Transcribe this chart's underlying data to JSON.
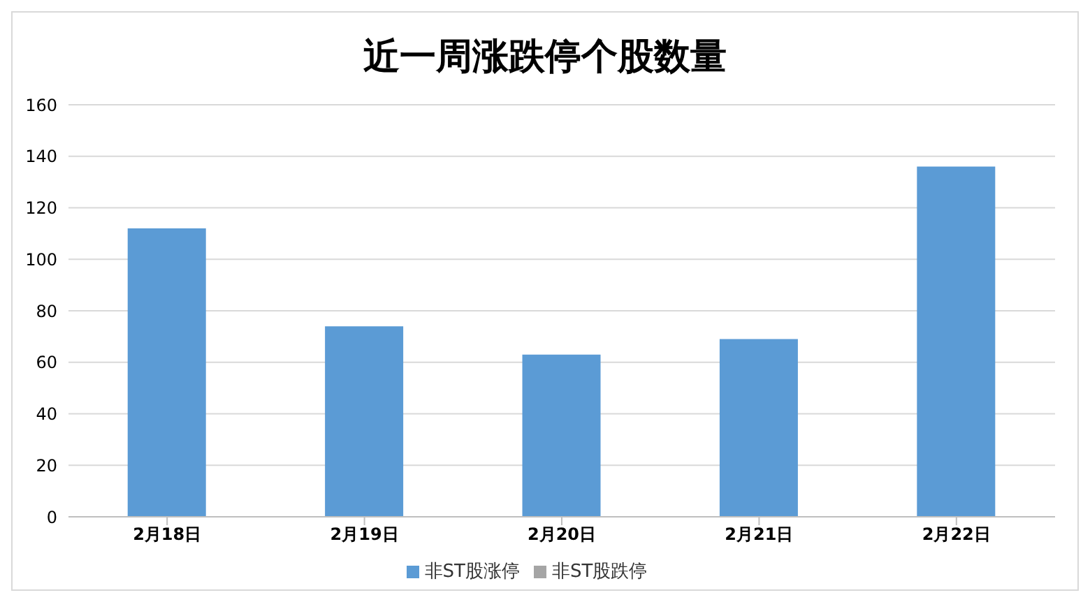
{
  "chart_data": {
    "type": "bar",
    "title": "近一周涨跌停个股数量",
    "categories": [
      "2月18日",
      "2月19日",
      "2月20日",
      "2月21日",
      "2月22日"
    ],
    "series": [
      {
        "name": "非ST股涨停",
        "color": "#5b9bd5",
        "values": [
          112,
          74,
          63,
          69,
          136
        ]
      },
      {
        "name": "非ST股跌停",
        "color": "#a5a5a5",
        "values": [
          null,
          null,
          null,
          null,
          null
        ]
      }
    ],
    "ylim": [
      0,
      160
    ],
    "yticks": [
      0,
      20,
      40,
      60,
      80,
      100,
      120,
      140,
      160
    ],
    "grid": "y",
    "legend": "bottom"
  }
}
